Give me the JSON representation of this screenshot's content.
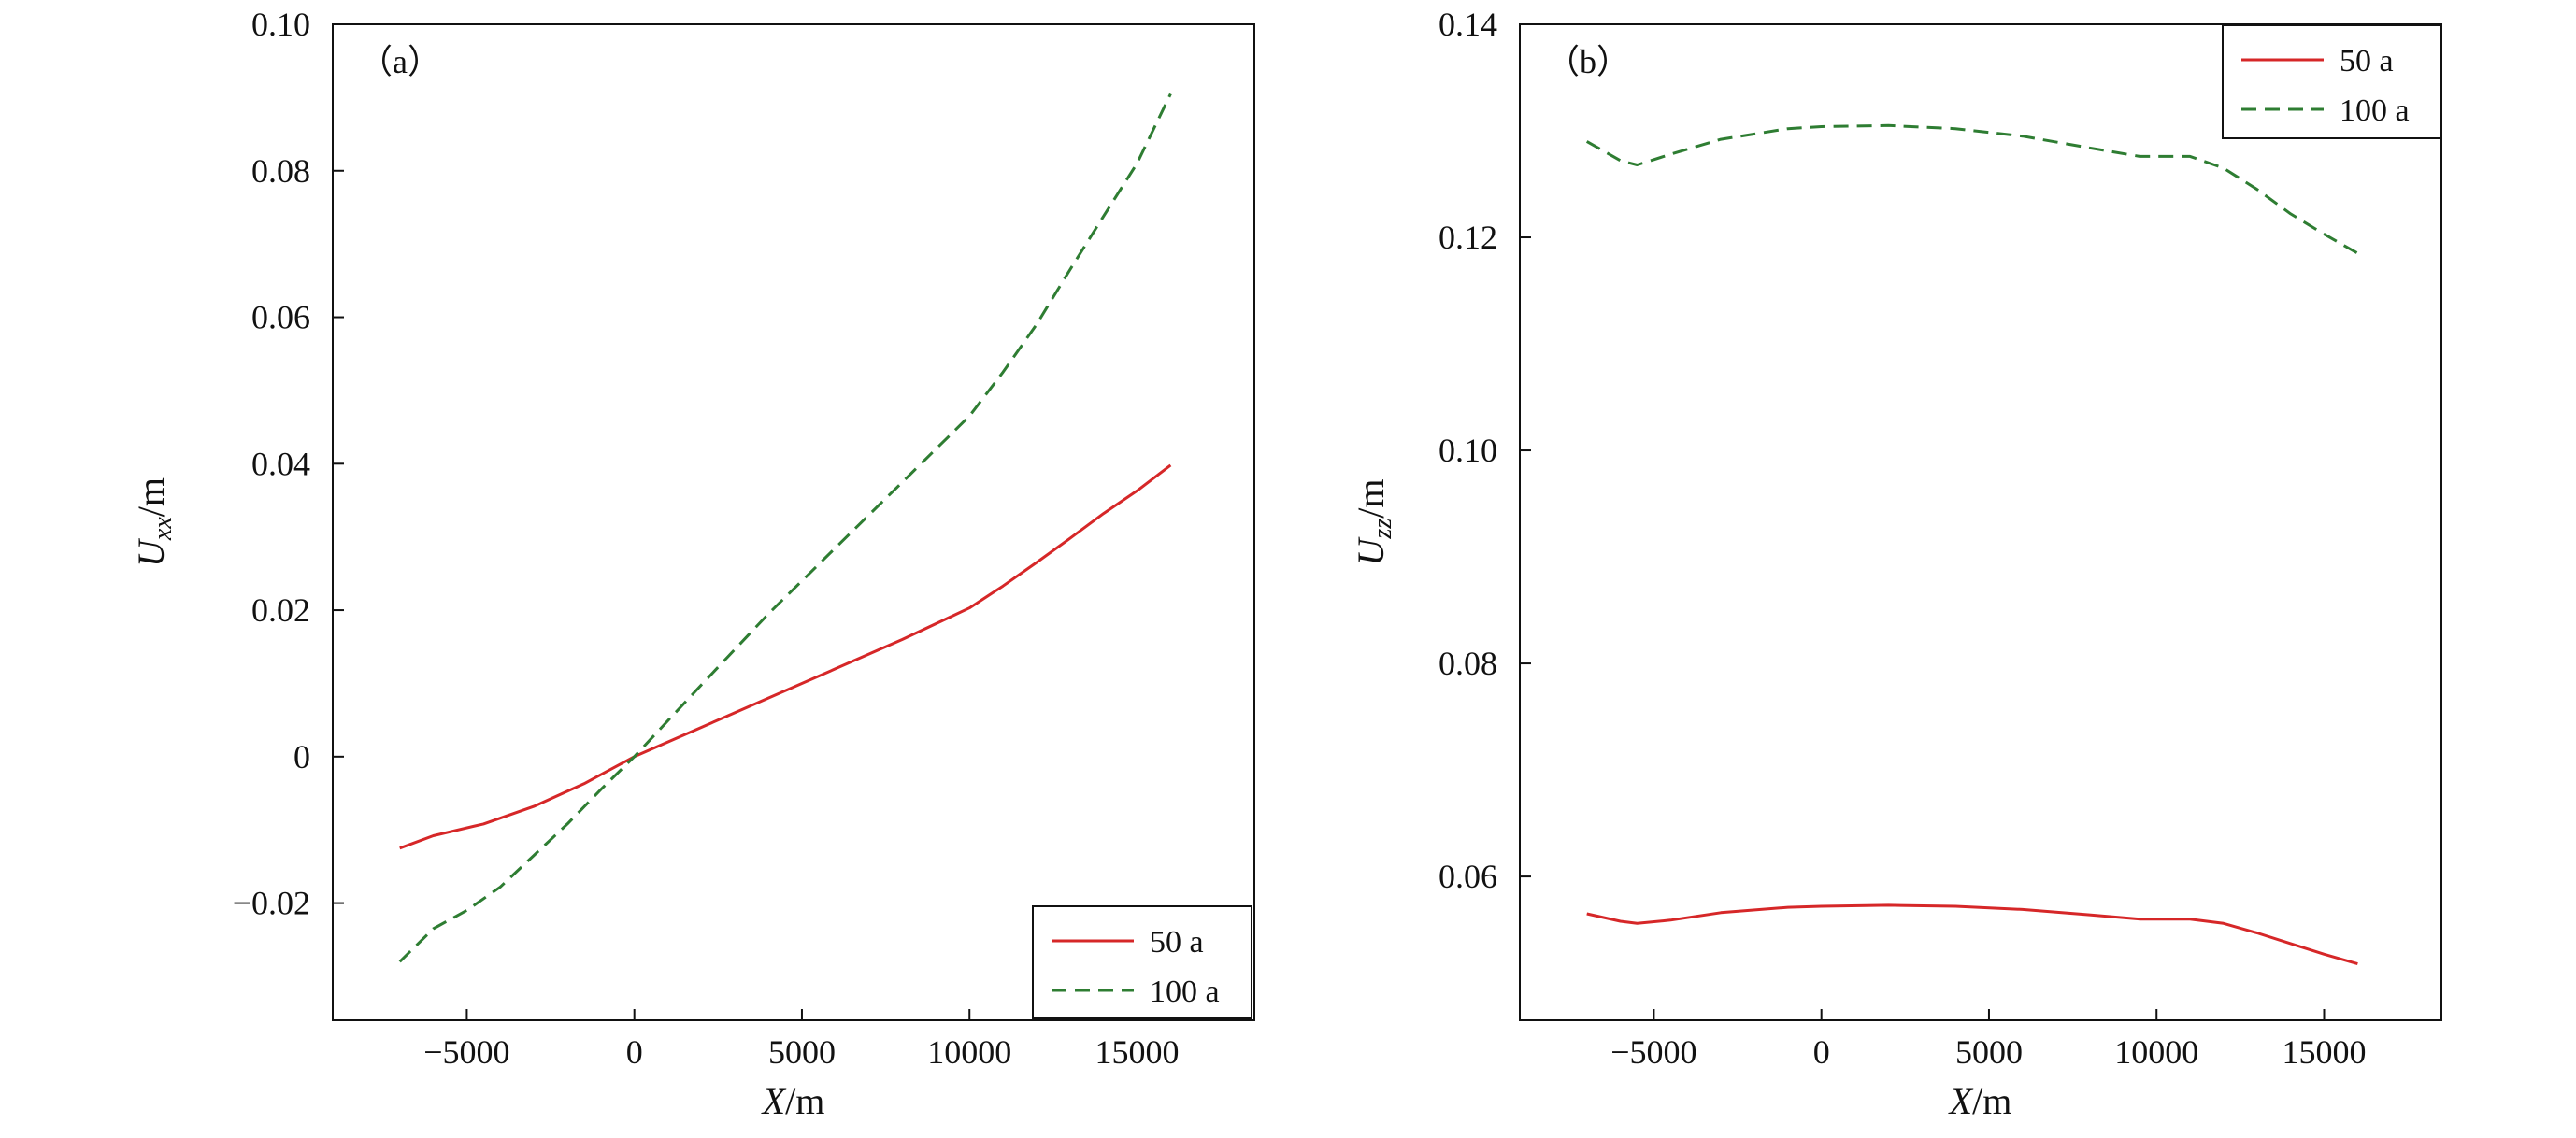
{
  "chart_data": [
    {
      "type": "line",
      "panel_label": "（a）",
      "xlabel": {
        "main": "X",
        "unit": "/m"
      },
      "ylabel": {
        "main": "U",
        "sub": "xx",
        "unit": "/m"
      },
      "xlim": [
        -9000,
        18500
      ],
      "ylim": [
        -0.036,
        0.1
      ],
      "xticks": [
        -5000,
        0,
        5000,
        10000,
        15000
      ],
      "xtick_labels": [
        "−5000",
        "0",
        "5000",
        "10000",
        "15000"
      ],
      "yticks": [
        -0.02,
        0,
        0.02,
        0.04,
        0.06,
        0.08,
        0.1
      ],
      "ytick_labels": [
        "−0.02",
        "0",
        "0.02",
        "0.04",
        "0.06",
        "0.08",
        "0.10"
      ],
      "legend_position": "bottom-right",
      "series": [
        {
          "name": "50 a",
          "style": "solid",
          "color": "#d62728",
          "x": [
            -7000,
            -6000,
            -4500,
            -3000,
            -1500,
            0,
            2000,
            4000,
            6000,
            8000,
            10000,
            11000,
            12000,
            13000,
            14000,
            15000,
            16000
          ],
          "y": [
            -0.0125,
            -0.0108,
            -0.0092,
            -0.0068,
            -0.0037,
            0.0,
            0.004,
            0.008,
            0.012,
            0.016,
            0.0203,
            0.0233,
            0.0265,
            0.0298,
            0.0332,
            0.0363,
            0.0398
          ]
        },
        {
          "name": "100 a",
          "style": "dashed",
          "color": "#2e7d32",
          "x": [
            -7000,
            -6000,
            -5000,
            -4000,
            -3000,
            -2000,
            -1000,
            0,
            2000,
            4000,
            6000,
            8000,
            10000,
            11000,
            12000,
            13000,
            14000,
            15000,
            16000
          ],
          "y": [
            -0.028,
            -0.0235,
            -0.021,
            -0.0178,
            -0.0135,
            -0.0092,
            -0.0045,
            0.0,
            0.0098,
            0.0195,
            0.0285,
            0.0375,
            0.0465,
            0.0525,
            0.059,
            0.0665,
            0.0738,
            0.081,
            0.0905
          ]
        }
      ]
    },
    {
      "type": "line",
      "panel_label": "（b）",
      "xlabel": {
        "main": "X",
        "unit": "/m"
      },
      "ylabel": {
        "main": "U",
        "sub": "zz",
        "unit": "/m"
      },
      "xlim": [
        -9000,
        18500
      ],
      "ylim": [
        0.0465,
        0.14
      ],
      "xticks": [
        -5000,
        0,
        5000,
        10000,
        15000
      ],
      "xtick_labels": [
        "−5000",
        "0",
        "5000",
        "10000",
        "15000"
      ],
      "yticks": [
        0.06,
        0.08,
        0.1,
        0.12,
        0.14
      ],
      "ytick_labels": [
        "0.06",
        "0.08",
        "0.10",
        "0.12",
        "0.14"
      ],
      "legend_position": "top-right",
      "series": [
        {
          "name": "50 a",
          "style": "solid",
          "color": "#d62728",
          "x": [
            -7000,
            -6000,
            -5500,
            -4500,
            -3000,
            -1000,
            0,
            2000,
            4000,
            6000,
            8000,
            9500,
            11000,
            12000,
            13000,
            14000,
            15000,
            16000
          ],
          "y": [
            0.0565,
            0.0558,
            0.0556,
            0.0559,
            0.0566,
            0.0571,
            0.0572,
            0.0573,
            0.0572,
            0.0569,
            0.0564,
            0.056,
            0.056,
            0.0556,
            0.0547,
            0.0537,
            0.0527,
            0.0518
          ]
        },
        {
          "name": "100 a",
          "style": "dashed",
          "color": "#2e7d32",
          "x": [
            -7000,
            -6000,
            -5500,
            -4500,
            -3000,
            -1000,
            0,
            2000,
            4000,
            6000,
            8000,
            9500,
            11000,
            12000,
            13000,
            14000,
            15000,
            16000
          ],
          "y": [
            0.129,
            0.1272,
            0.1268,
            0.1278,
            0.1292,
            0.1302,
            0.1304,
            0.1305,
            0.1302,
            0.1295,
            0.1284,
            0.1276,
            0.1276,
            0.1265,
            0.1245,
            0.1222,
            0.1203,
            0.1185
          ]
        }
      ]
    }
  ]
}
